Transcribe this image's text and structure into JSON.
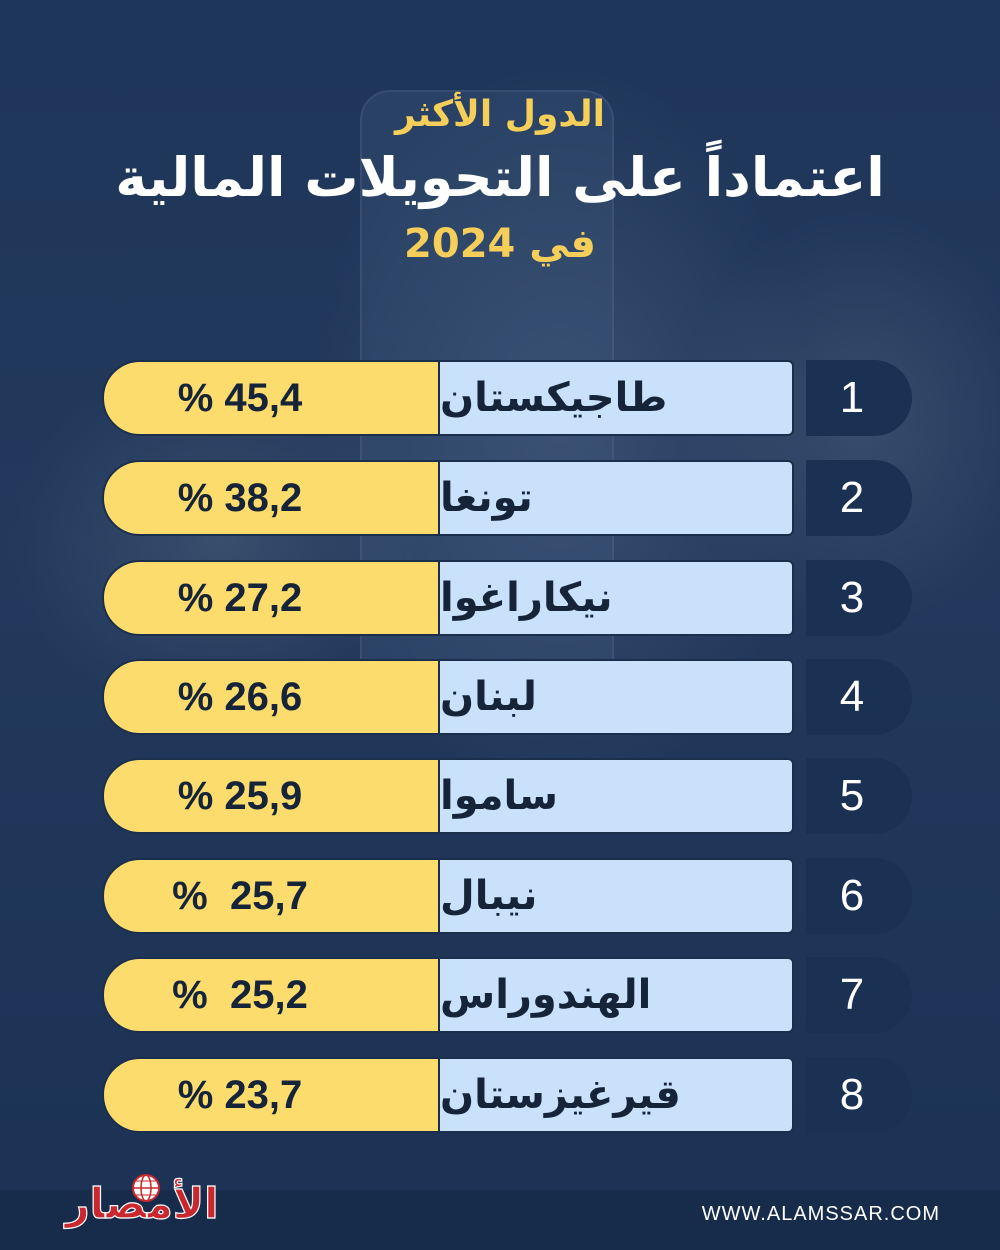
{
  "header": {
    "line1": "الدول الأكثر",
    "line2": "اعتماداً على التحويلات المالية",
    "line3": "في 2024"
  },
  "chart_data": {
    "type": "table",
    "title": "الدول الأكثر اعتماداً على التحويلات المالية في 2024",
    "rows": [
      {
        "rank": "1",
        "country": "طاجيكستان",
        "value_label": "% 45,4",
        "value": 45.4
      },
      {
        "rank": "2",
        "country": "تونغا",
        "value_label": "% 38,2",
        "value": 38.2
      },
      {
        "rank": "3",
        "country": "نيكاراغوا",
        "value_label": "% 27,2",
        "value": 27.2
      },
      {
        "rank": "4",
        "country": "لبنان",
        "value_label": "% 26,6",
        "value": 26.6
      },
      {
        "rank": "5",
        "country": "ساموا",
        "value_label": "% 25,9",
        "value": 25.9
      },
      {
        "rank": "6",
        "country": "نيبال",
        "value_label": "%  25,7",
        "value": 25.7
      },
      {
        "rank": "7",
        "country": "الهندوراس",
        "value_label": "%  25,2",
        "value": 25.2
      },
      {
        "rank": "8",
        "country": "قيرغيزستان",
        "value_label": "% 23,7",
        "value": 23.7
      }
    ]
  },
  "footer": {
    "logo_text": "الأمصار",
    "website": "WWW.ALAMSSAR.COM"
  },
  "colors": {
    "background": "#1d3558",
    "title_accent": "#f5cf59",
    "value_fill": "#fddc6e",
    "country_fill": "#c9e1fb",
    "rank_fill": "#1b3153",
    "logo_red": "#c8282e"
  },
  "icons": {
    "logo": "globe-icon"
  }
}
